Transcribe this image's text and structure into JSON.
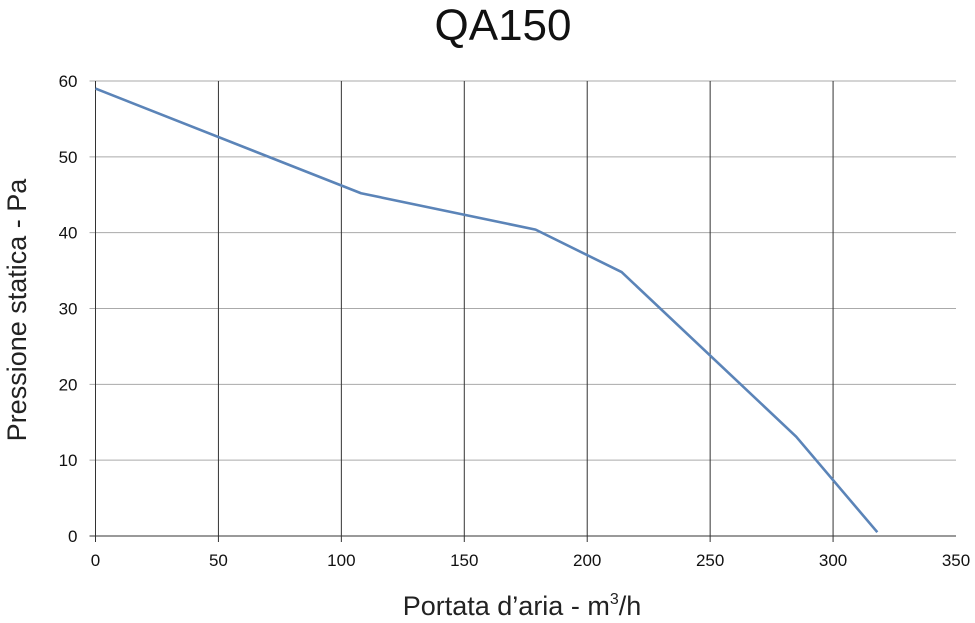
{
  "chart_data": {
    "type": "line",
    "title": "QA150",
    "xlabel": "Portata d'aria - m³/h",
    "xlabel_parts": {
      "base": "Portata d’aria - m",
      "sup": "3",
      "tail": "/h"
    },
    "ylabel": "Pressione statica - Pa",
    "xlim": [
      0,
      350
    ],
    "ylim": [
      0,
      60
    ],
    "xticks": [
      0,
      50,
      100,
      150,
      200,
      250,
      300,
      350
    ],
    "yticks": [
      0,
      10,
      20,
      30,
      40,
      50,
      60
    ],
    "grid": true,
    "series": [
      {
        "color": "#5b84b8",
        "x": [
          0,
          108,
          179,
          214,
          285,
          318
        ],
        "y": [
          59,
          45.2,
          40.4,
          34.8,
          13.1,
          0.5
        ]
      }
    ]
  }
}
